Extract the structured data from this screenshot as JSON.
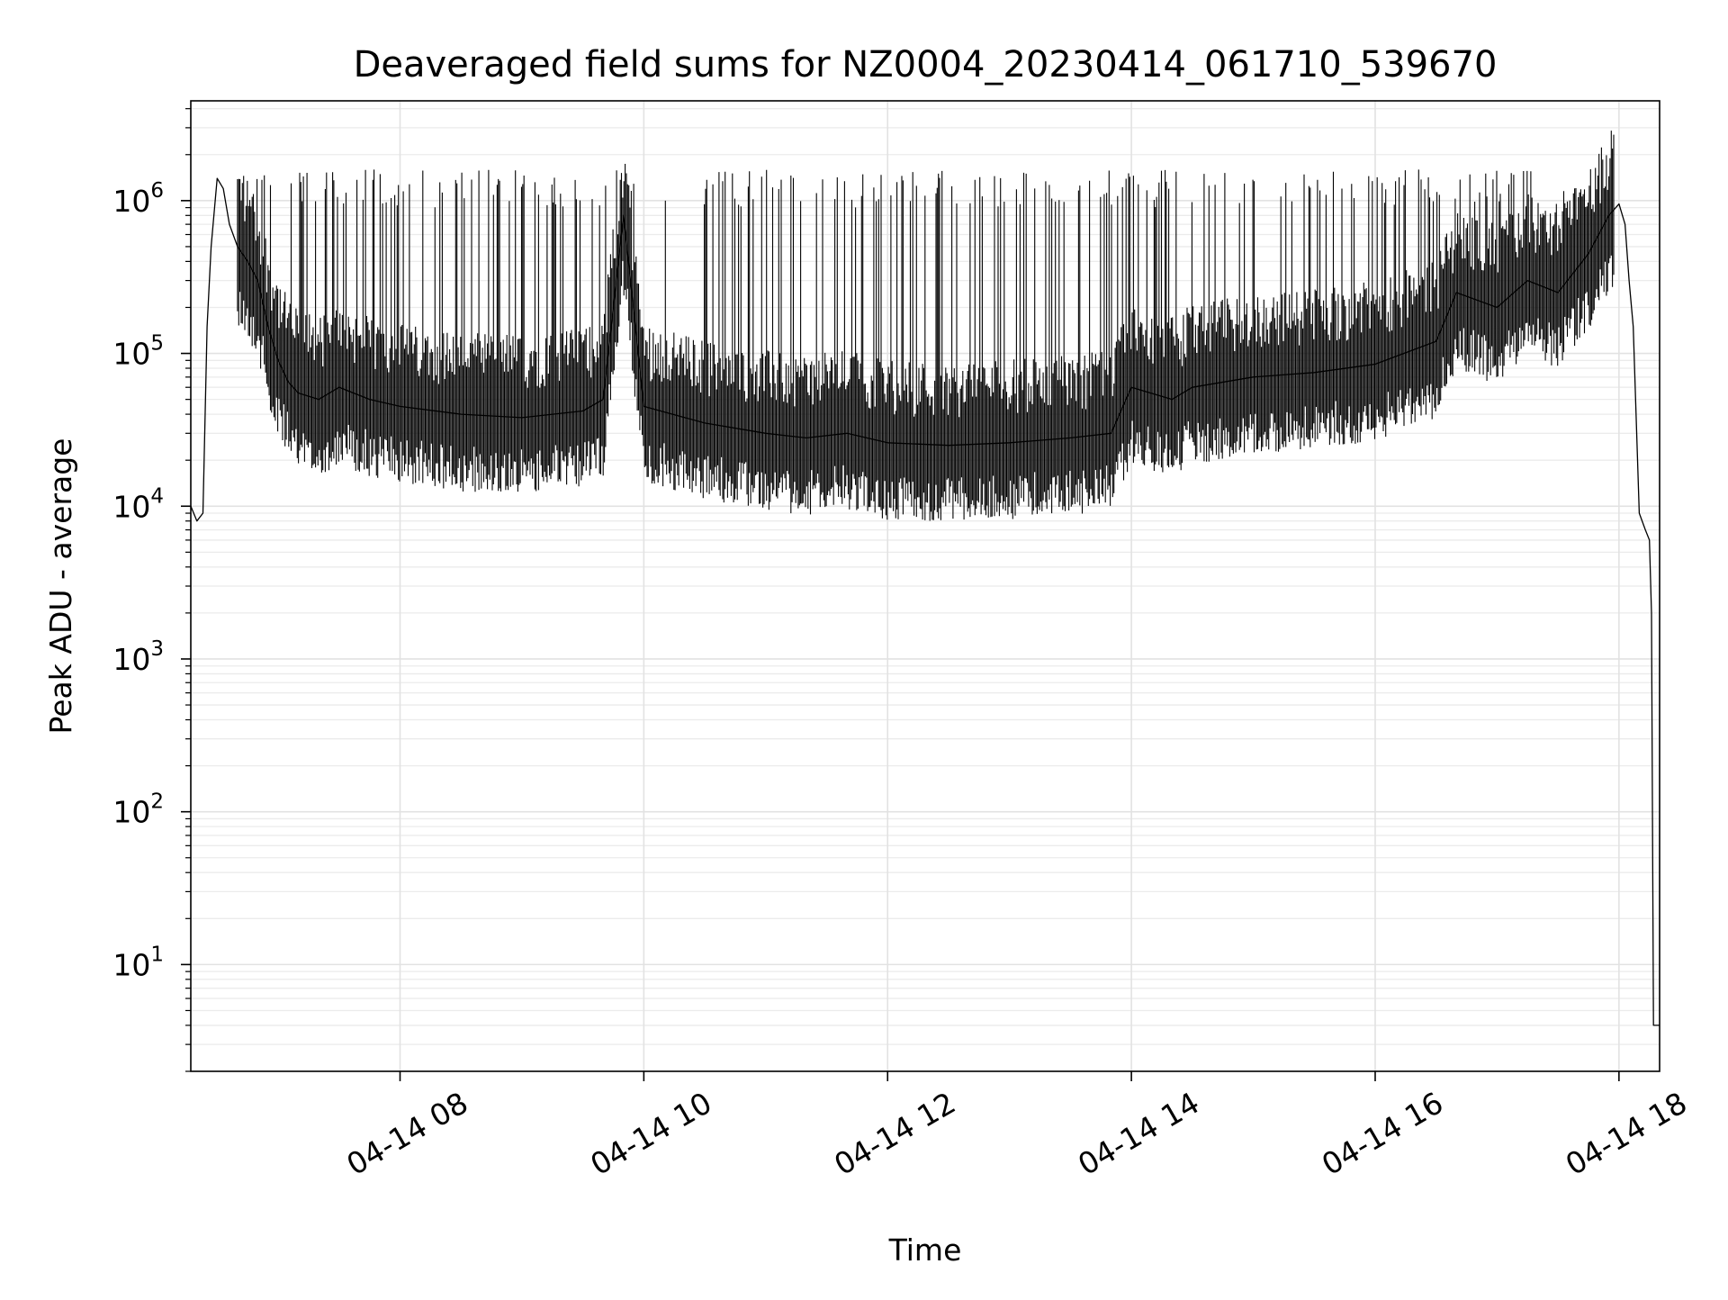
{
  "chart_data": {
    "type": "line",
    "title": "Deaveraged field sums for NZ0004_20230414_061710_539670",
    "xlabel": "Time",
    "ylabel": "Peak ADU - average",
    "xlim": [
      "2023-04-14 06:17",
      "2023-04-14 18:20"
    ],
    "ylim": [
      2,
      4500000
    ],
    "y_scale": "log",
    "grid": true,
    "grid_minor": true,
    "x_tick_labels": [
      "04-14 08",
      "04-14 10",
      "04-14 12",
      "04-14 14",
      "04-14 16",
      "04-14 18"
    ],
    "x_tick_values": [
      "2023-04-14 08:00",
      "2023-04-14 10:00",
      "2023-04-14 12:00",
      "2023-04-14 14:00",
      "2023-04-14 16:00",
      "2023-04-14 18:00"
    ],
    "y_tick_labels": [
      {
        "base": "10",
        "exp": "1"
      },
      {
        "base": "10",
        "exp": "2"
      },
      {
        "base": "10",
        "exp": "3"
      },
      {
        "base": "10",
        "exp": "4"
      },
      {
        "base": "10",
        "exp": "5"
      },
      {
        "base": "10",
        "exp": "6"
      }
    ],
    "y_tick_values": [
      10,
      100,
      1000,
      10000,
      100000,
      1000000
    ],
    "series": [
      {
        "color": "#000000",
        "x": [
          "2023-04-14 06:17",
          "2023-04-14 06:20",
          "2023-04-14 06:23",
          "2023-04-14 06:25",
          "2023-04-14 06:27",
          "2023-04-14 06:30",
          "2023-04-14 06:33",
          "2023-04-14 06:36",
          "2023-04-14 06:40",
          "2023-04-14 06:45",
          "2023-04-14 06:50",
          "2023-04-14 06:55",
          "2023-04-14 07:00",
          "2023-04-14 07:05",
          "2023-04-14 07:10",
          "2023-04-14 07:20",
          "2023-04-14 07:30",
          "2023-04-14 07:45",
          "2023-04-14 08:00",
          "2023-04-14 08:30",
          "2023-04-14 09:00",
          "2023-04-14 09:30",
          "2023-04-14 09:40",
          "2023-04-14 09:50",
          "2023-04-14 10:00",
          "2023-04-14 10:30",
          "2023-04-14 11:00",
          "2023-04-14 11:20",
          "2023-04-14 11:40",
          "2023-04-14 12:00",
          "2023-04-14 12:30",
          "2023-04-14 13:00",
          "2023-04-14 13:30",
          "2023-04-14 13:50",
          "2023-04-14 14:00",
          "2023-04-14 14:20",
          "2023-04-14 14:30",
          "2023-04-14 15:00",
          "2023-04-14 15:30",
          "2023-04-14 16:00",
          "2023-04-14 16:30",
          "2023-04-14 16:40",
          "2023-04-14 17:00",
          "2023-04-14 17:15",
          "2023-04-14 17:30",
          "2023-04-14 17:45",
          "2023-04-14 17:55",
          "2023-04-14 18:00",
          "2023-04-14 18:03",
          "2023-04-14 18:05",
          "2023-04-14 18:07",
          "2023-04-14 18:10",
          "2023-04-14 18:13",
          "2023-04-14 18:15",
          "2023-04-14 18:16",
          "2023-04-14 18:17",
          "2023-04-14 18:20"
        ],
        "y": [
          10000,
          8000,
          9000,
          150000,
          500000,
          1400000,
          1200000,
          700000,
          500000,
          400000,
          300000,
          150000,
          90000,
          65000,
          55000,
          50000,
          60000,
          50000,
          45000,
          40000,
          38000,
          42000,
          50000,
          800000,
          45000,
          35000,
          30000,
          28000,
          30000,
          26000,
          25000,
          26000,
          28000,
          30000,
          60000,
          50000,
          60000,
          70000,
          75000,
          85000,
          120000,
          250000,
          200000,
          300000,
          250000,
          450000,
          800000,
          950000,
          700000,
          300000,
          150000,
          9000,
          7000,
          6000,
          2000,
          4,
          4
        ]
      }
    ]
  }
}
